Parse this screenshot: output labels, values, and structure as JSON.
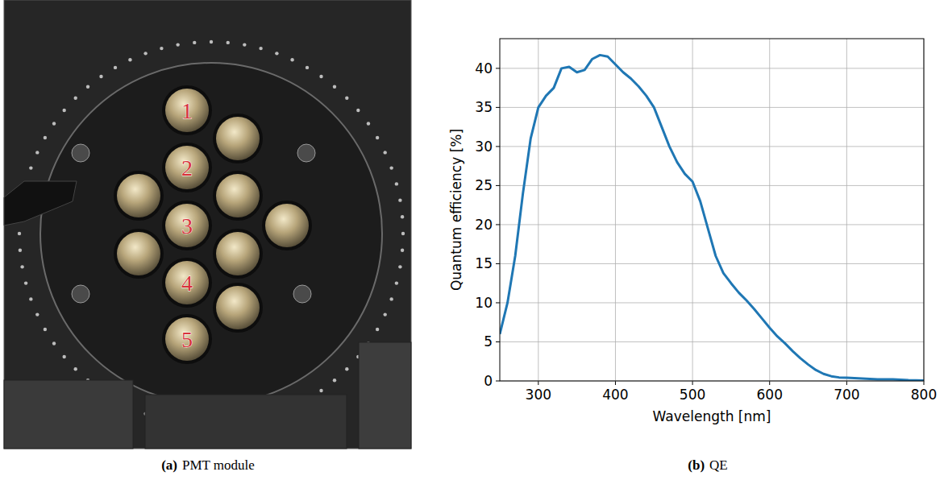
{
  "photo": {
    "caption_label": "(a)",
    "caption": "PMT module",
    "pmt_labels": [
      "1",
      "2",
      "3",
      "4",
      "5"
    ]
  },
  "chart_data": {
    "type": "line",
    "caption_label": "(b)",
    "caption": "QE",
    "x_label": "Wavelength [nm]",
    "y_label": "Quantum efficiency [%]",
    "x": [
      250,
      260,
      270,
      280,
      290,
      300,
      310,
      320,
      330,
      340,
      350,
      360,
      370,
      380,
      390,
      400,
      410,
      420,
      430,
      440,
      450,
      460,
      470,
      480,
      490,
      500,
      510,
      520,
      530,
      540,
      550,
      560,
      570,
      580,
      590,
      600,
      610,
      620,
      630,
      640,
      650,
      660,
      670,
      680,
      690,
      700,
      720,
      740,
      760,
      780,
      800
    ],
    "values": [
      6,
      10,
      16,
      24,
      31,
      35,
      36.5,
      37.5,
      40,
      40.2,
      39.5,
      39.8,
      41.2,
      41.7,
      41.5,
      40.5,
      39.5,
      38.7,
      37.7,
      36.5,
      35,
      32.5,
      30,
      28,
      26.5,
      25.5,
      23,
      19.5,
      16,
      13.8,
      12.5,
      11.3,
      10.3,
      9.2,
      8,
      6.8,
      5.7,
      4.8,
      3.8,
      2.9,
      2.1,
      1.4,
      0.9,
      0.6,
      0.45,
      0.4,
      0.3,
      0.2,
      0.2,
      0.1,
      0.05
    ],
    "color": "#1f77b4",
    "grid": true,
    "xlim": [
      250,
      800
    ],
    "xticks": [
      300,
      400,
      500,
      600,
      700,
      800
    ],
    "ylim": [
      0,
      43.8
    ],
    "yticks": [
      0,
      5,
      10,
      15,
      20,
      25,
      30,
      35,
      40
    ]
  }
}
